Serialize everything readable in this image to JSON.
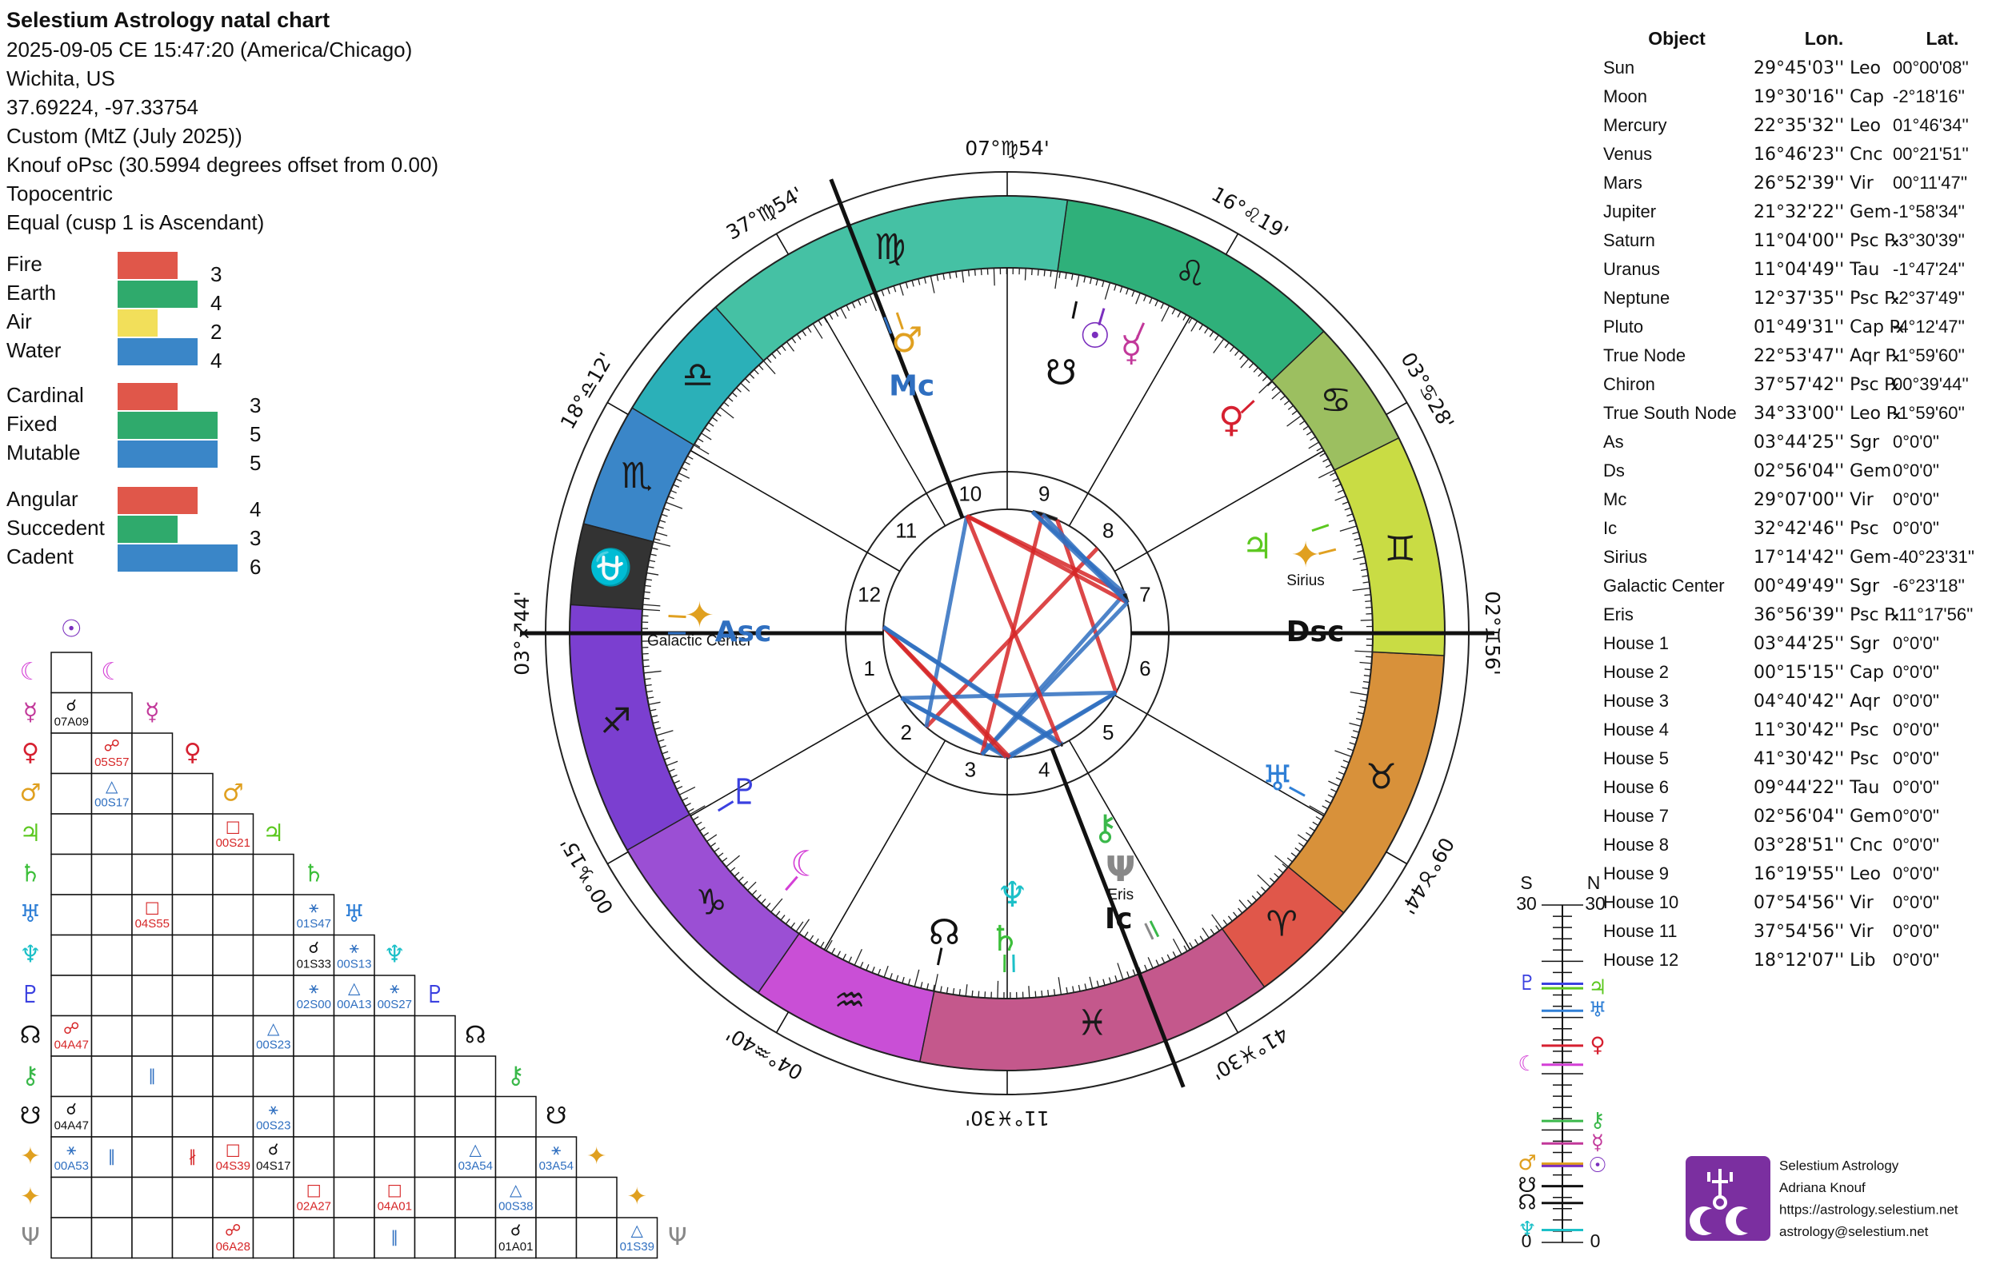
{
  "header": {
    "title": "Selestium Astrology natal chart",
    "lines": [
      "2025-09-05 CE 15:47:20 (America/Chicago)",
      "Wichita, US",
      "37.69224, -97.33754",
      "Custom (MtZ (July 2025))",
      "Knouf oPsc (30.5994 degrees offset from 0.00)",
      "Topocentric",
      "Equal (cusp 1 is Ascendant)"
    ]
  },
  "balance": [
    [
      {
        "name": "Fire",
        "value": 3,
        "color": "#e0574a"
      },
      {
        "name": "Earth",
        "value": 4,
        "color": "#2faa6c"
      },
      {
        "name": "Air",
        "value": 2,
        "color": "#f2df5a"
      },
      {
        "name": "Water",
        "value": 4,
        "color": "#3a86c8"
      }
    ],
    [
      {
        "name": "Cardinal",
        "value": 3,
        "color": "#e0574a"
      },
      {
        "name": "Fixed",
        "value": 5,
        "color": "#2faa6c"
      },
      {
        "name": "Mutable",
        "value": 5,
        "color": "#3a86c8"
      }
    ],
    [
      {
        "name": "Angular",
        "value": 4,
        "color": "#e0574a"
      },
      {
        "name": "Succedent",
        "value": 3,
        "color": "#2faa6c"
      },
      {
        "name": "Cadent",
        "value": 6,
        "color": "#3a86c8"
      }
    ]
  ],
  "table": {
    "header": [
      "Object",
      "Lon.",
      "Lat."
    ],
    "rows": [
      {
        "name": "Sun",
        "lon": "29°45'03'' Leo",
        "lat": "00°00'08''",
        "glyph": "☉",
        "color": "#7b2fbe"
      },
      {
        "name": "Moon",
        "lon": "19°30'16'' Cap",
        "lat": "-2°18'16''",
        "glyph": "☾",
        "color": "#d43fd6"
      },
      {
        "name": "Mercury",
        "lon": "22°35'32'' Leo",
        "lat": "01°46'34''",
        "glyph": "☿",
        "color": "#c2389a"
      },
      {
        "name": "Venus",
        "lon": "16°46'23'' Cnc",
        "lat": "00°21'51''",
        "glyph": "♀",
        "color": "#d62030"
      },
      {
        "name": "Mars",
        "lon": "26°52'39'' Vir",
        "lat": "00°11'47''",
        "glyph": "♂",
        "color": "#e0a020"
      },
      {
        "name": "Jupiter",
        "lon": "21°32'22'' Gem",
        "lat": "-1°58'34''",
        "glyph": "♃",
        "color": "#5cc820"
      },
      {
        "name": "Saturn",
        "lon": "11°04'00'' Psc ℞",
        "lat": "-3°30'39''",
        "glyph": "♄",
        "color": "#3cbf3a"
      },
      {
        "name": "Uranus",
        "lon": "11°04'49'' Tau",
        "lat": "-1°47'24''",
        "glyph": "♅",
        "color": "#2f7fd6"
      },
      {
        "name": "Neptune",
        "lon": "12°37'35'' Psc ℞",
        "lat": "-2°37'49''",
        "glyph": "♆",
        "color": "#1cc0c8"
      },
      {
        "name": "Pluto",
        "lon": "01°49'31'' Cap ℞",
        "lat": "-4°12'47''",
        "glyph": "♇",
        "color": "#3a40e0"
      },
      {
        "name": "True Node",
        "lon": "22°53'47'' Aqr ℞",
        "lat": "-1°59'60''",
        "glyph": "☊",
        "color": "#111111"
      },
      {
        "name": "Chiron",
        "lon": "37°57'42'' Psc ℞",
        "lat": "00°39'44''",
        "glyph": "⚷",
        "color": "#3ab84a"
      },
      {
        "name": "True South Node",
        "lon": "34°33'00'' Leo ℞",
        "lat": "-1°59'60''",
        "glyph": "☋",
        "color": "#111111"
      },
      {
        "name": "As",
        "lon": "03°44'25'' Sgr",
        "lat": "0°0'0''",
        "glyph": "Asc",
        "color": "#2f6fc0"
      },
      {
        "name": "Ds",
        "lon": "02°56'04'' Gem",
        "lat": "0°0'0''",
        "glyph": "Dsc",
        "color": "#111111"
      },
      {
        "name": "Mc",
        "lon": "29°07'00'' Vir",
        "lat": "0°0'0''",
        "glyph": "Mc",
        "color": "#2f6fc0"
      },
      {
        "name": "Ic",
        "lon": "32°42'46'' Psc",
        "lat": "0°0'0''",
        "glyph": "Ic",
        "color": "#111111"
      },
      {
        "name": "Sirius",
        "lon": "17°14'42'' Gem",
        "lat": "-40°23'31''",
        "glyph": "✦",
        "color": "#e0a020",
        "show_name": true
      },
      {
        "name": "Galactic Center",
        "lon": "00°49'49'' Sgr",
        "lat": "-6°23'18''",
        "glyph": "✦",
        "color": "#e0a020",
        "show_name": true
      },
      {
        "name": "Eris",
        "lon": "36°56'39'' Psc ℞",
        "lat": "-11°17'56''",
        "glyph": "Ψ",
        "color": "#888888",
        "show_name": true
      }
    ],
    "house_rows": [
      {
        "name": "House 1",
        "lon": "03°44'25'' Sgr",
        "lat": "0°0'0''"
      },
      {
        "name": "House 2",
        "lon": "00°15'15'' Cap",
        "lat": "0°0'0''"
      },
      {
        "name": "House 3",
        "lon": "04°40'42'' Aqr",
        "lat": "0°0'0''"
      },
      {
        "name": "House 4",
        "lon": "11°30'42'' Psc",
        "lat": "0°0'0''"
      },
      {
        "name": "House 5",
        "lon": "41°30'42'' Psc",
        "lat": "0°0'0''"
      },
      {
        "name": "House 6",
        "lon": "09°44'22'' Tau",
        "lat": "0°0'0''"
      },
      {
        "name": "House 7",
        "lon": "02°56'04'' Gem",
        "lat": "0°0'0''"
      },
      {
        "name": "House 8",
        "lon": "03°28'51'' Cnc",
        "lat": "0°0'0''"
      },
      {
        "name": "House 9",
        "lon": "16°19'55'' Leo",
        "lat": "0°0'0''"
      },
      {
        "name": "House 10",
        "lon": "07°54'56'' Vir",
        "lat": "0°0'0''"
      },
      {
        "name": "House 11",
        "lon": "37°54'56'' Vir",
        "lat": "0°0'0''"
      },
      {
        "name": "House 12",
        "lon": "18°12'07'' Lib",
        "lat": "0°0'0''"
      }
    ]
  },
  "wheel": {
    "signs": [
      {
        "abbr": "Ari",
        "glyph": "♈",
        "color": "#e0574a"
      },
      {
        "abbr": "Tau",
        "glyph": "♉",
        "color": "#d8913a"
      },
      {
        "abbr": "Gem",
        "glyph": "♊",
        "color": "#c9dc44"
      },
      {
        "abbr": "Cnc",
        "glyph": "♋",
        "color": "#9cbf60"
      },
      {
        "abbr": "Leo",
        "glyph": "♌",
        "color": "#2fb07a"
      },
      {
        "abbr": "Vir",
        "glyph": "♍",
        "color": "#45c1a4"
      },
      {
        "abbr": "Lib",
        "glyph": "♎",
        "color": "#2bb0b8"
      },
      {
        "abbr": "Sco",
        "glyph": "♏",
        "color": "#3a86c8"
      },
      {
        "glyph": "⛎",
        "color": "#333333"
      },
      {
        "abbr": "Sgr",
        "glyph": "♐",
        "color": "#7b3fd0"
      },
      {
        "abbr": "Cap",
        "glyph": "♑",
        "color": "#9b4fd4"
      },
      {
        "abbr": "Aqr",
        "glyph": "♒",
        "color": "#c94fd6"
      },
      {
        "abbr": "Psc",
        "glyph": "♓",
        "color": "#c4588c"
      }
    ],
    "cusp_labels": [
      "03°♐44'",
      "00°♑15'",
      "04°♒40'",
      "11°♓30'",
      "41°♓30'",
      "09°♉44'",
      "02°♊56'",
      "03°♋28'",
      "16°♌19'",
      "07°♍54'",
      "37°♍54'",
      "18°♎12'"
    ],
    "house_numbers": [
      1,
      2,
      3,
      4,
      5,
      6,
      7,
      8,
      9,
      10,
      11,
      12
    ]
  },
  "aspect_grid": {
    "objects": [
      "Sun",
      "Moon",
      "Mercury",
      "Venus",
      "Mars",
      "Jupiter",
      "Saturn",
      "Uranus",
      "Neptune",
      "Pluto",
      "True Node",
      "Chiron",
      "True South Node",
      "Sirius",
      "Galactic Center",
      "Eris"
    ],
    "rows": [
      [
        null
      ],
      [
        {
          "aspect": "☌",
          "text": "07A09",
          "color": "#111111"
        },
        null
      ],
      [
        null,
        {
          "aspect": "☍",
          "text": "05S57",
          "color": "#d62728"
        },
        null
      ],
      [
        null,
        {
          "aspect": "△",
          "text": "00S17",
          "color": "#2f6fc0"
        },
        null,
        null
      ],
      [
        null,
        null,
        null,
        null,
        {
          "aspect": "□",
          "text": "00S21",
          "color": "#d62728"
        }
      ],
      [
        null,
        null,
        null,
        null,
        null,
        null
      ],
      [
        null,
        null,
        {
          "aspect": "□",
          "text": "04S55",
          "color": "#d62728"
        },
        null,
        null,
        null,
        {
          "aspect": "⚹",
          "text": "01S47",
          "color": "#2f6fc0"
        }
      ],
      [
        null,
        null,
        null,
        null,
        null,
        null,
        {
          "aspect": "☌",
          "text": "01S33",
          "color": "#111111"
        },
        {
          "aspect": "⚹",
          "text": "00S13",
          "color": "#2f6fc0"
        }
      ],
      [
        null,
        null,
        null,
        null,
        null,
        null,
        {
          "aspect": "⚹",
          "text": "02S00",
          "color": "#2f6fc0"
        },
        {
          "aspect": "△",
          "text": "00A13",
          "color": "#2f6fc0"
        },
        {
          "aspect": "⚹",
          "text": "00S27",
          "color": "#2f6fc0"
        }
      ],
      [
        {
          "aspect": "☍",
          "text": "04A47",
          "color": "#d62728"
        },
        null,
        null,
        null,
        null,
        {
          "aspect": "△",
          "text": "00S23",
          "color": "#2f6fc0"
        },
        null,
        null,
        null,
        null
      ],
      [
        null,
        null,
        {
          "aspect": "∥",
          "color": "#2f6fc0"
        },
        null,
        null,
        null,
        null,
        null,
        null,
        null,
        null
      ],
      [
        {
          "aspect": "☌",
          "text": "04A47",
          "color": "#111111"
        },
        null,
        null,
        null,
        null,
        {
          "aspect": "⚹",
          "text": "00S23",
          "color": "#2f6fc0"
        },
        null,
        null,
        null,
        null,
        null,
        null
      ],
      [
        {
          "aspect": "⚹",
          "text": "00A53",
          "color": "#2f6fc0"
        },
        {
          "aspect": "∥",
          "color": "#2f6fc0"
        },
        null,
        {
          "aspect": "∦",
          "color": "#d62728"
        },
        {
          "aspect": "□",
          "text": "04S39",
          "color": "#d62728"
        },
        {
          "aspect": "☌",
          "text": "04S17",
          "color": "#111111"
        },
        null,
        null,
        null,
        null,
        {
          "aspect": "△",
          "text": "03A54",
          "color": "#2f6fc0"
        },
        null,
        {
          "aspect": "⚹",
          "text": "03A54",
          "color": "#2f6fc0"
        }
      ],
      [
        null,
        null,
        null,
        null,
        null,
        null,
        {
          "aspect": "□",
          "text": "02A27",
          "color": "#d62728"
        },
        null,
        {
          "aspect": "□",
          "text": "04A01",
          "color": "#d62728"
        },
        null,
        null,
        {
          "aspect": "△",
          "text": "00S38",
          "color": "#2f6fc0"
        },
        null,
        null
      ],
      [
        null,
        null,
        null,
        null,
        {
          "aspect": "☍",
          "text": "06A28",
          "color": "#d62728"
        },
        null,
        null,
        null,
        {
          "aspect": "∥",
          "color": "#2f6fc0"
        },
        null,
        null,
        {
          "aspect": "☌",
          "text": "01A01",
          "color": "#111111"
        },
        null,
        null,
        {
          "aspect": "△",
          "text": "01S39",
          "color": "#2f6fc0"
        }
      ]
    ]
  },
  "declination": {
    "south_label": "S",
    "north_label": "N",
    "lim": [
      0,
      30
    ],
    "marks": [
      {
        "object": "Pluto",
        "value": -23
      },
      {
        "object": "Moon",
        "value": -15.8
      },
      {
        "object": "Mars",
        "value": -7
      },
      {
        "object": "True South Node",
        "value": -5
      },
      {
        "object": "True Node",
        "value": -3.5
      },
      {
        "object": "Neptune",
        "value": -1.1
      },
      {
        "object": "Jupiter",
        "value": 22.6
      },
      {
        "object": "Uranus",
        "value": 20.6
      },
      {
        "object": "Venus",
        "value": 17.5
      },
      {
        "object": "Chiron",
        "value": 10.8
      },
      {
        "object": "Mercury",
        "value": 8.8
      },
      {
        "object": "Sun",
        "value": 6.8
      }
    ]
  },
  "credits": [
    "Selestium Astrology",
    "Adriana Knouf",
    "https://astrology.selestium.net",
    "astrology@selestium.net"
  ]
}
